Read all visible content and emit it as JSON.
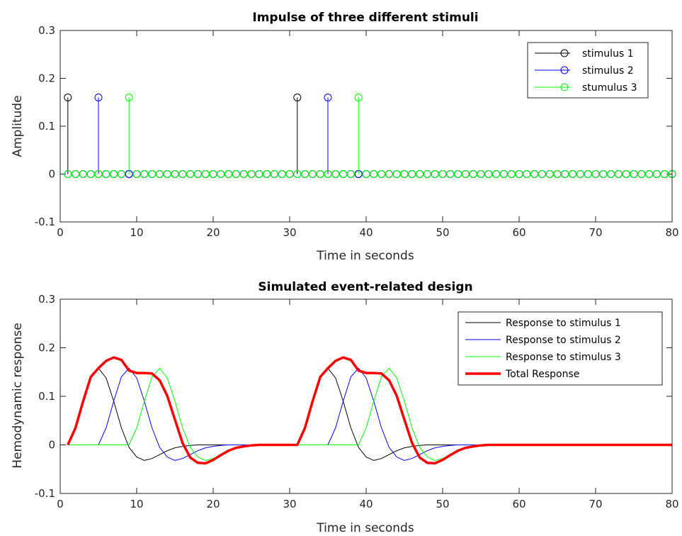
{
  "chart_data": [
    {
      "type": "stem",
      "title": "Impulse of three different stimuli",
      "xlabel": "Time in seconds",
      "ylabel": "Amplitude",
      "xlim": [
        0,
        80
      ],
      "ylim": [
        -0.1,
        0.3
      ],
      "xticks": [
        "0",
        "10",
        "20",
        "30",
        "40",
        "50",
        "60",
        "70",
        "80"
      ],
      "yticks": [
        "-0.1",
        "0",
        "0.1",
        "0.2",
        "0.3"
      ],
      "grid": false,
      "legend_position": "top-right",
      "x_range": [
        1,
        80
      ],
      "series": [
        {
          "name": "stimulus 1",
          "color": "#000000",
          "marker": "circle",
          "impulses": [
            {
              "x": 1,
              "y": 0.16
            },
            {
              "x": 31,
              "y": 0.16
            }
          ]
        },
        {
          "name": "stimulus 2",
          "color": "#0000ff",
          "marker": "circle",
          "impulses": [
            {
              "x": 5,
              "y": 0.16
            },
            {
              "x": 35,
              "y": 0.16
            }
          ]
        },
        {
          "name": "stumulus 3",
          "color": "#00ff00",
          "marker": "circle",
          "impulses": [
            {
              "x": 9,
              "y": 0.16
            },
            {
              "x": 39,
              "y": 0.16
            }
          ]
        }
      ]
    },
    {
      "type": "line",
      "title": "Simulated event-related design",
      "xlabel": "Time in seconds",
      "ylabel": "Hemodynamic response",
      "xlim": [
        0,
        80
      ],
      "ylim": [
        -0.1,
        0.3
      ],
      "xticks": [
        "0",
        "10",
        "20",
        "30",
        "40",
        "50",
        "60",
        "70",
        "80"
      ],
      "yticks": [
        "-0.1",
        "0",
        "0.1",
        "0.2",
        "0.3"
      ],
      "grid": false,
      "legend_position": "top-right",
      "series": [
        {
          "name": "Response to stimulus 1",
          "color": "#000000",
          "x": [
            1,
            2,
            3,
            4,
            5,
            6,
            7,
            8,
            9,
            10,
            11,
            12,
            13,
            14,
            15,
            16,
            17,
            18,
            19,
            20,
            21,
            22,
            23,
            24,
            25,
            26,
            27,
            28,
            29,
            30,
            31,
            32,
            33,
            34,
            35,
            36,
            37,
            38,
            39,
            40,
            41,
            42,
            43,
            44,
            45,
            46,
            47,
            48,
            49,
            50,
            51,
            52,
            53,
            54,
            55,
            56,
            57,
            58,
            59,
            60,
            61,
            62,
            63,
            64,
            65,
            66,
            67,
            68,
            69,
            70,
            71,
            72,
            73,
            74,
            75,
            76,
            77,
            78,
            79,
            80
          ],
          "y": [
            0,
            0.035,
            0.09,
            0.14,
            0.158,
            0.138,
            0.09,
            0.035,
            -0.005,
            -0.025,
            -0.032,
            -0.028,
            -0.02,
            -0.012,
            -0.006,
            -0.003,
            -0.001,
            0,
            0,
            0,
            0,
            0,
            0,
            0,
            0,
            0,
            0,
            0,
            0,
            0,
            0,
            0.035,
            0.09,
            0.14,
            0.158,
            0.138,
            0.09,
            0.035,
            -0.005,
            -0.025,
            -0.032,
            -0.028,
            -0.02,
            -0.012,
            -0.006,
            -0.003,
            -0.001,
            0,
            0,
            0,
            0,
            0,
            0,
            0,
            0,
            0,
            0,
            0,
            0,
            0,
            0,
            0,
            0,
            0,
            0,
            0,
            0,
            0,
            0,
            0,
            0,
            0,
            0,
            0,
            0,
            0,
            0,
            0,
            0,
            0
          ]
        },
        {
          "name": "Response to stimulus 2",
          "color": "#0000ff",
          "x": [
            1,
            2,
            3,
            4,
            5,
            6,
            7,
            8,
            9,
            10,
            11,
            12,
            13,
            14,
            15,
            16,
            17,
            18,
            19,
            20,
            21,
            22,
            23,
            24,
            25,
            26,
            27,
            28,
            29,
            30,
            31,
            32,
            33,
            34,
            35,
            36,
            37,
            38,
            39,
            40,
            41,
            42,
            43,
            44,
            45,
            46,
            47,
            48,
            49,
            50,
            51,
            52,
            53,
            54,
            55,
            56,
            57,
            58,
            59,
            60,
            61,
            62,
            63,
            64,
            65,
            66,
            67,
            68,
            69,
            70,
            71,
            72,
            73,
            74,
            75,
            76,
            77,
            78,
            79,
            80
          ],
          "y": [
            0,
            0,
            0,
            0,
            0,
            0.035,
            0.09,
            0.14,
            0.158,
            0.138,
            0.09,
            0.035,
            -0.005,
            -0.025,
            -0.032,
            -0.028,
            -0.02,
            -0.012,
            -0.006,
            -0.003,
            -0.001,
            0,
            0,
            0,
            0,
            0,
            0,
            0,
            0,
            0,
            0,
            0,
            0,
            0,
            0,
            0.035,
            0.09,
            0.14,
            0.158,
            0.138,
            0.09,
            0.035,
            -0.005,
            -0.025,
            -0.032,
            -0.028,
            -0.02,
            -0.012,
            -0.006,
            -0.003,
            -0.001,
            0,
            0,
            0,
            0,
            0,
            0,
            0,
            0,
            0,
            0,
            0,
            0,
            0,
            0,
            0,
            0,
            0,
            0,
            0,
            0,
            0,
            0,
            0,
            0,
            0,
            0,
            0,
            0,
            0
          ]
        },
        {
          "name": "Response to stimulus 3",
          "color": "#00ff00",
          "x": [
            1,
            2,
            3,
            4,
            5,
            6,
            7,
            8,
            9,
            10,
            11,
            12,
            13,
            14,
            15,
            16,
            17,
            18,
            19,
            20,
            21,
            22,
            23,
            24,
            25,
            26,
            27,
            28,
            29,
            30,
            31,
            32,
            33,
            34,
            35,
            36,
            37,
            38,
            39,
            40,
            41,
            42,
            43,
            44,
            45,
            46,
            47,
            48,
            49,
            50,
            51,
            52,
            53,
            54,
            55,
            56,
            57,
            58,
            59,
            60,
            61,
            62,
            63,
            64,
            65,
            66,
            67,
            68,
            69,
            70,
            71,
            72,
            73,
            74,
            75,
            76,
            77,
            78,
            79,
            80
          ],
          "y": [
            0,
            0,
            0,
            0,
            0,
            0,
            0,
            0,
            0,
            0.035,
            0.09,
            0.14,
            0.158,
            0.138,
            0.09,
            0.035,
            -0.005,
            -0.025,
            -0.032,
            -0.028,
            -0.02,
            -0.012,
            -0.006,
            -0.003,
            -0.001,
            0,
            0,
            0,
            0,
            0,
            0,
            0,
            0,
            0,
            0,
            0,
            0,
            0,
            0,
            0.035,
            0.09,
            0.14,
            0.158,
            0.138,
            0.09,
            0.035,
            -0.005,
            -0.025,
            -0.032,
            -0.028,
            -0.02,
            -0.012,
            -0.006,
            -0.003,
            -0.001,
            0,
            0,
            0,
            0,
            0,
            0,
            0,
            0,
            0,
            0,
            0,
            0,
            0,
            0,
            0,
            0,
            0,
            0,
            0,
            0,
            0,
            0,
            0,
            0,
            0
          ]
        },
        {
          "name": "Total Response",
          "color": "#ff0000",
          "x": [
            1,
            2,
            3,
            4,
            5,
            6,
            7,
            8,
            9,
            10,
            11,
            12,
            13,
            14,
            15,
            16,
            17,
            18,
            19,
            20,
            21,
            22,
            23,
            24,
            25,
            26,
            27,
            28,
            29,
            30,
            31,
            32,
            33,
            34,
            35,
            36,
            37,
            38,
            39,
            40,
            41,
            42,
            43,
            44,
            45,
            46,
            47,
            48,
            49,
            50,
            51,
            52,
            53,
            54,
            55,
            56,
            57,
            58,
            59,
            60,
            61,
            62,
            63,
            64,
            65,
            66,
            67,
            68,
            69,
            70,
            71,
            72,
            73,
            74,
            75,
            76,
            77,
            78,
            79,
            80
          ],
          "y": [
            0,
            0.035,
            0.09,
            0.14,
            0.158,
            0.173,
            0.18,
            0.175,
            0.153,
            0.148,
            0.148,
            0.147,
            0.133,
            0.101,
            0.052,
            0.004,
            -0.026,
            -0.037,
            -0.038,
            -0.031,
            -0.021,
            -0.012,
            -0.006,
            -0.003,
            -0.001,
            0,
            0,
            0,
            0,
            0,
            0,
            0.035,
            0.09,
            0.14,
            0.158,
            0.173,
            0.18,
            0.175,
            0.153,
            0.148,
            0.148,
            0.147,
            0.133,
            0.101,
            0.052,
            0.004,
            -0.026,
            -0.037,
            -0.038,
            -0.031,
            -0.021,
            -0.012,
            -0.006,
            -0.003,
            -0.001,
            0,
            0,
            0,
            0,
            0,
            0,
            0,
            0,
            0,
            0,
            0,
            0,
            0,
            0,
            0,
            0,
            0,
            0,
            0,
            0,
            0,
            0,
            0,
            0,
            0
          ]
        }
      ]
    }
  ]
}
